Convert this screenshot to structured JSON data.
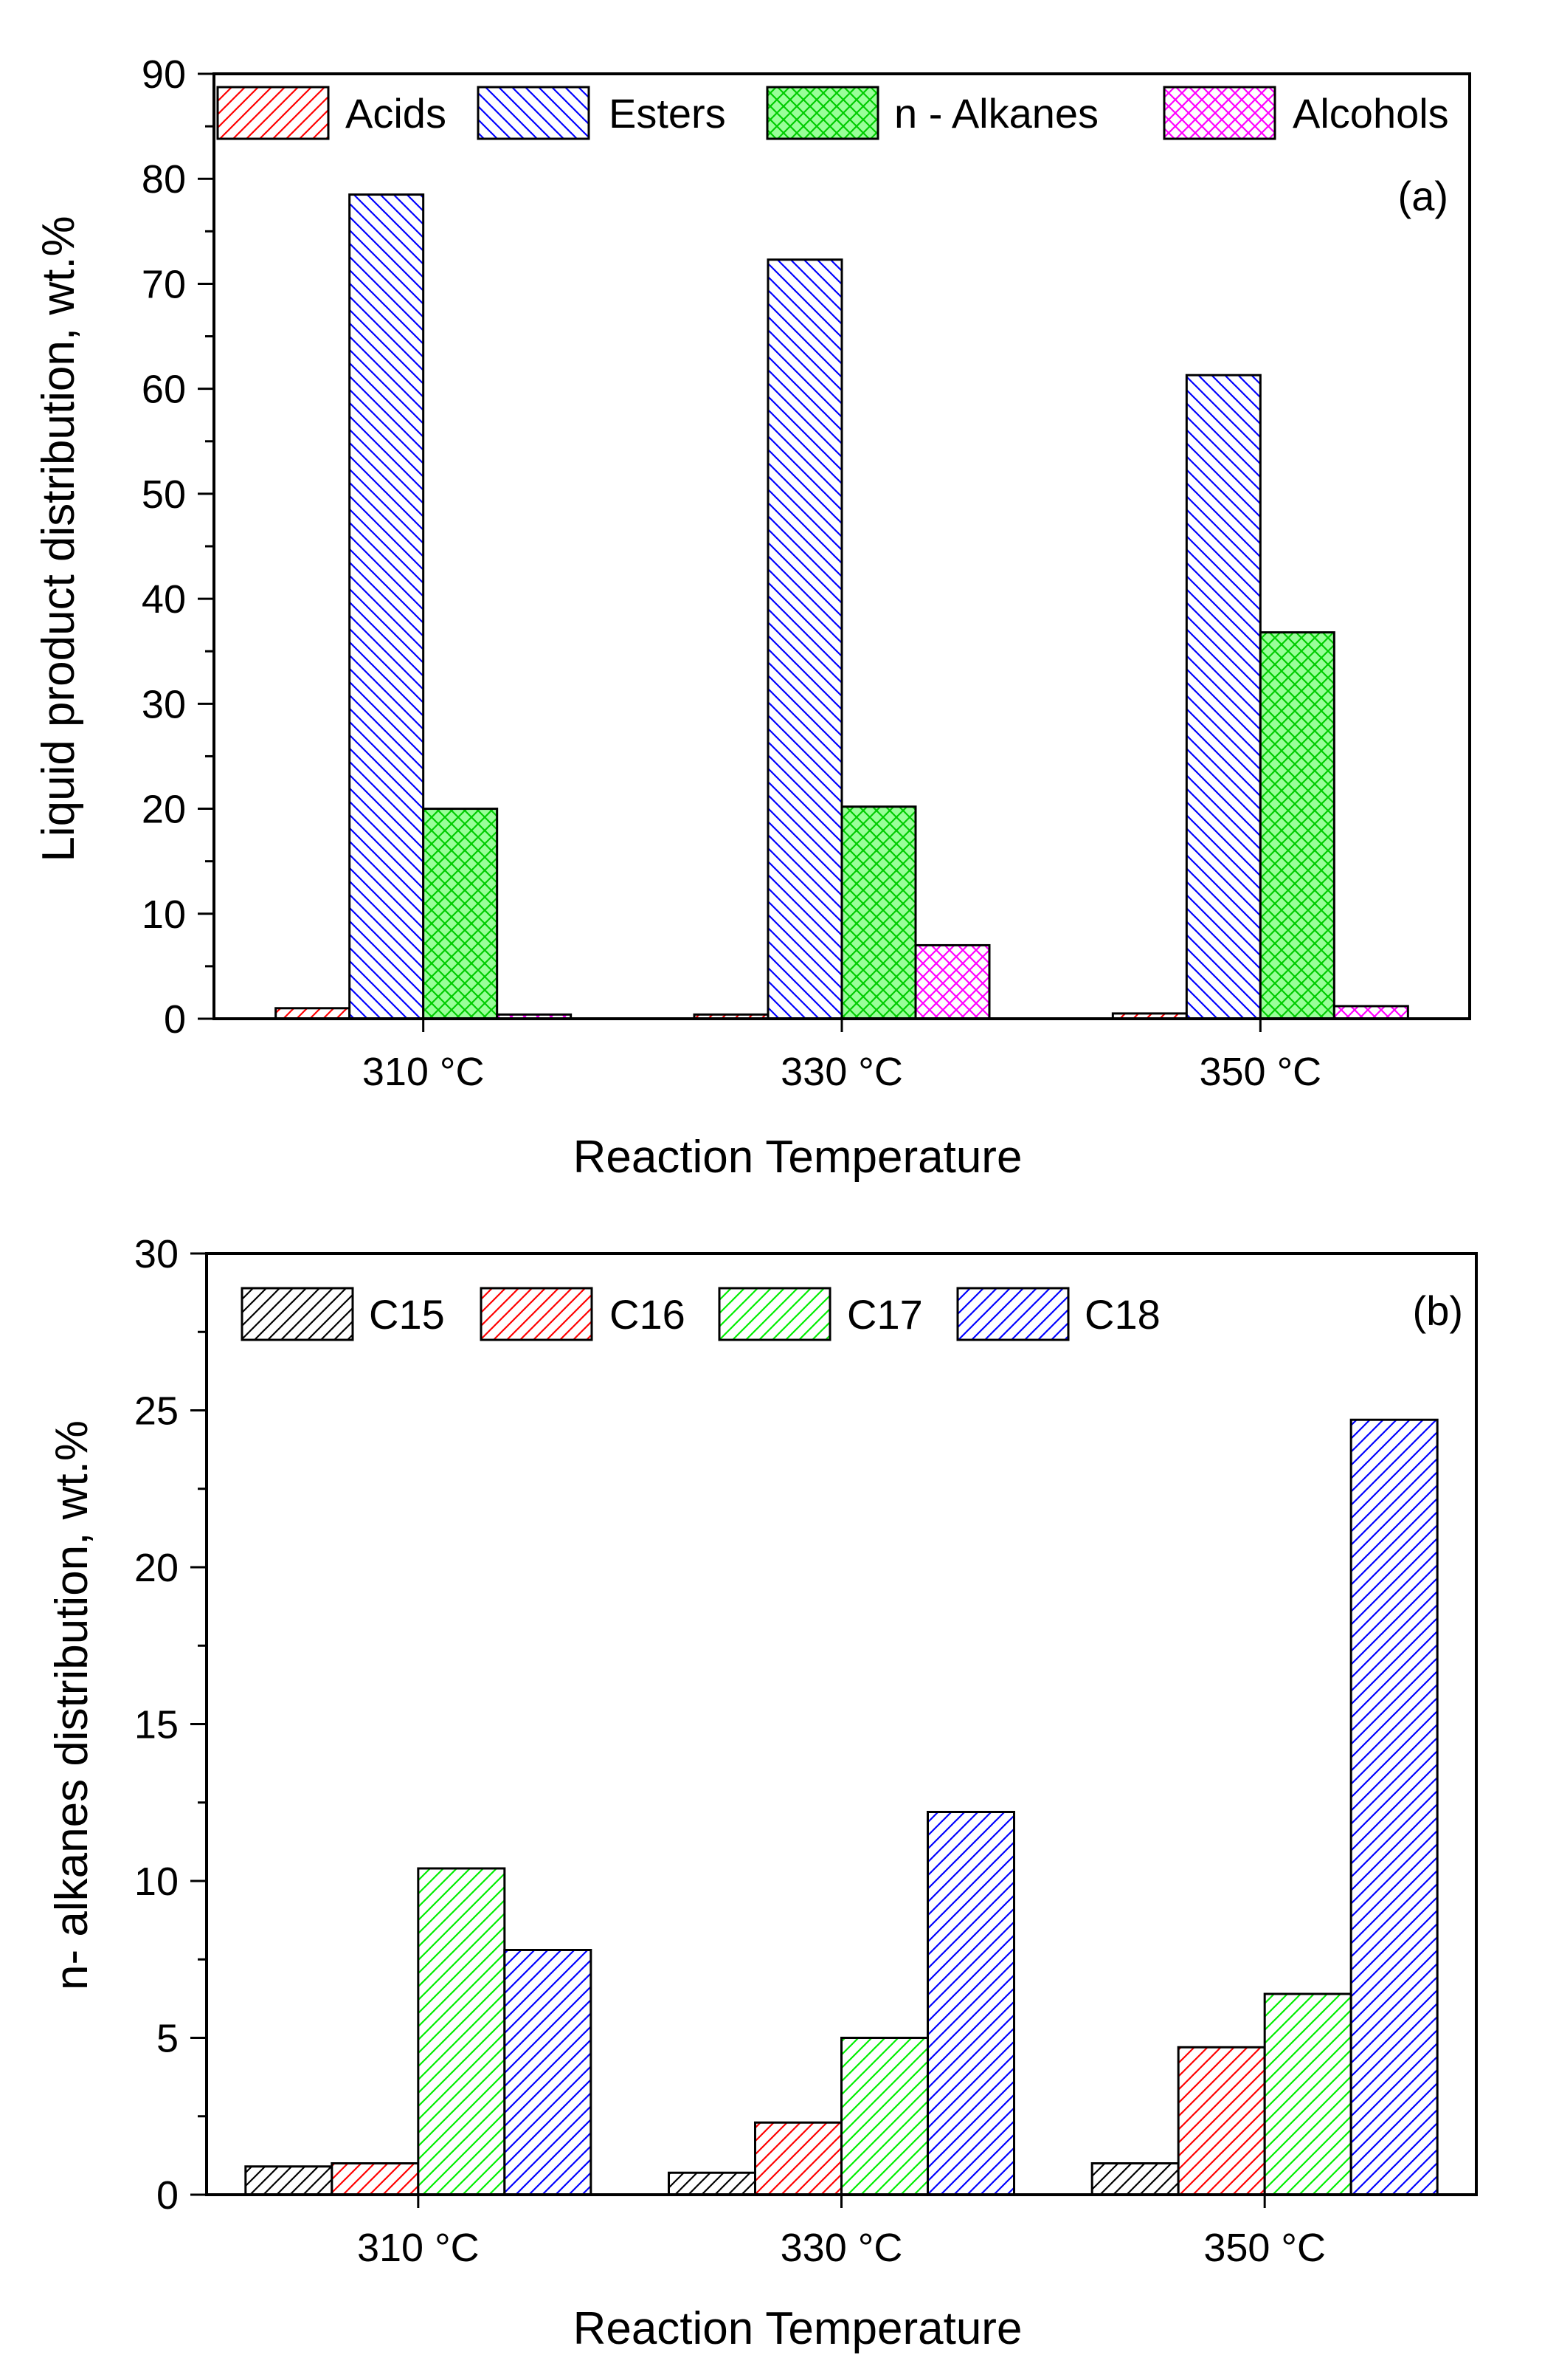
{
  "chart_data": [
    {
      "type": "bar",
      "panel_label": "(a)",
      "categories": [
        "310 °C",
        "330 °C",
        "350 °C"
      ],
      "series": [
        {
          "name": "Acids",
          "color": "#ff0000",
          "pattern": "hatch-right",
          "values": [
            1.0,
            0.4,
            0.5
          ]
        },
        {
          "name": "Esters",
          "color": "#0000ff",
          "pattern": "hatch-left",
          "values": [
            78.5,
            72.3,
            61.3
          ]
        },
        {
          "name": "n - Alkanes",
          "color": "#00cc00",
          "fill": "#99ff99",
          "pattern": "crosshatch",
          "values": [
            20.0,
            20.2,
            36.8
          ]
        },
        {
          "name": "Alcohols",
          "color": "#ff00ff",
          "pattern": "crosshatch",
          "values": [
            0.4,
            7.0,
            1.2
          ]
        }
      ],
      "xlabel": "Reaction Temperature",
      "ylabel": "Liquid product distribution, wt.%",
      "ylim": [
        0,
        90
      ],
      "yticks": [
        0,
        10,
        20,
        30,
        40,
        50,
        60,
        70,
        80,
        90
      ],
      "legend": "top, horizontal"
    },
    {
      "type": "bar",
      "panel_label": "(b)",
      "categories": [
        "310 °C",
        "330 °C",
        "350 °C"
      ],
      "series": [
        {
          "name": "C15",
          "color": "#000000",
          "pattern": "hatch-right",
          "values": [
            0.9,
            0.7,
            1.0
          ]
        },
        {
          "name": "C16",
          "color": "#ff0000",
          "pattern": "hatch-right",
          "values": [
            1.0,
            2.3,
            4.7
          ]
        },
        {
          "name": "C17",
          "color": "#00ee00",
          "pattern": "hatch-right",
          "values": [
            10.4,
            5.0,
            6.4
          ]
        },
        {
          "name": "C18",
          "color": "#0000ff",
          "pattern": "hatch-right",
          "values": [
            7.8,
            12.2,
            24.7
          ]
        }
      ],
      "xlabel": "Reaction Temperature",
      "ylabel": "n- alkanes distribution, wt.%",
      "ylim": [
        0,
        30
      ],
      "yticks": [
        0,
        5,
        10,
        15,
        20,
        25,
        30
      ],
      "legend": "top, horizontal"
    }
  ]
}
